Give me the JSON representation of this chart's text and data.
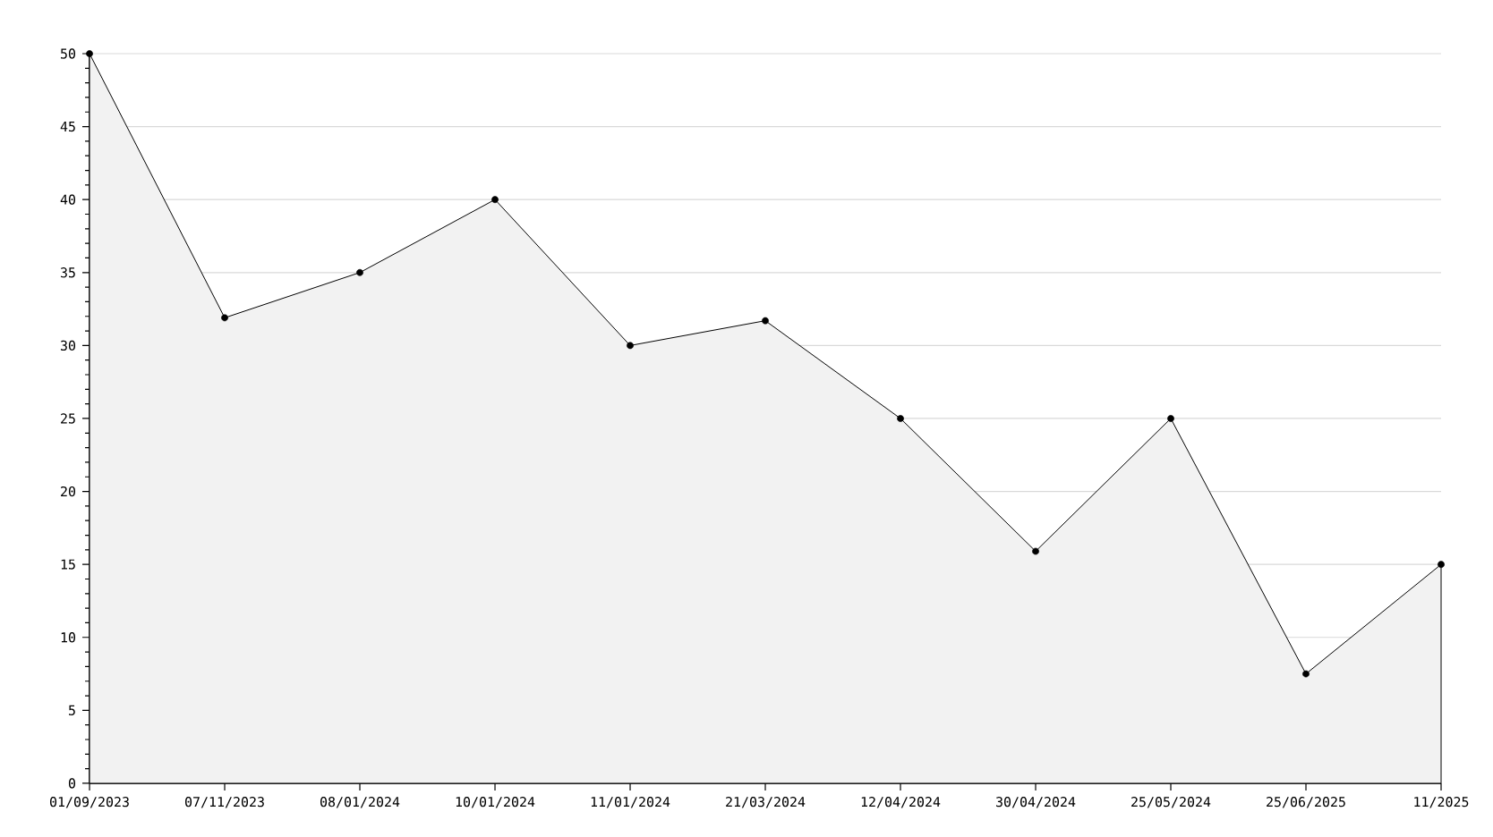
{
  "chart_data": {
    "type": "area",
    "categories": [
      "01/09/2023",
      "07/11/2023",
      "08/01/2024",
      "10/01/2024",
      "11/01/2024",
      "21/03/2024",
      "12/04/2024",
      "30/04/2024",
      "25/05/2024",
      "25/06/2025",
      "11/2025"
    ],
    "values": [
      50,
      31.9,
      35,
      40,
      30,
      31.7,
      25,
      15.9,
      25,
      7.5,
      15
    ],
    "color": "#f2f2f2",
    "ylim": [
      0,
      50
    ],
    "yticks": [
      0,
      5,
      10,
      15,
      20,
      25,
      30,
      35,
      40,
      45,
      50
    ],
    "grid": "y",
    "marker": "circle",
    "line_style": "solid"
  }
}
